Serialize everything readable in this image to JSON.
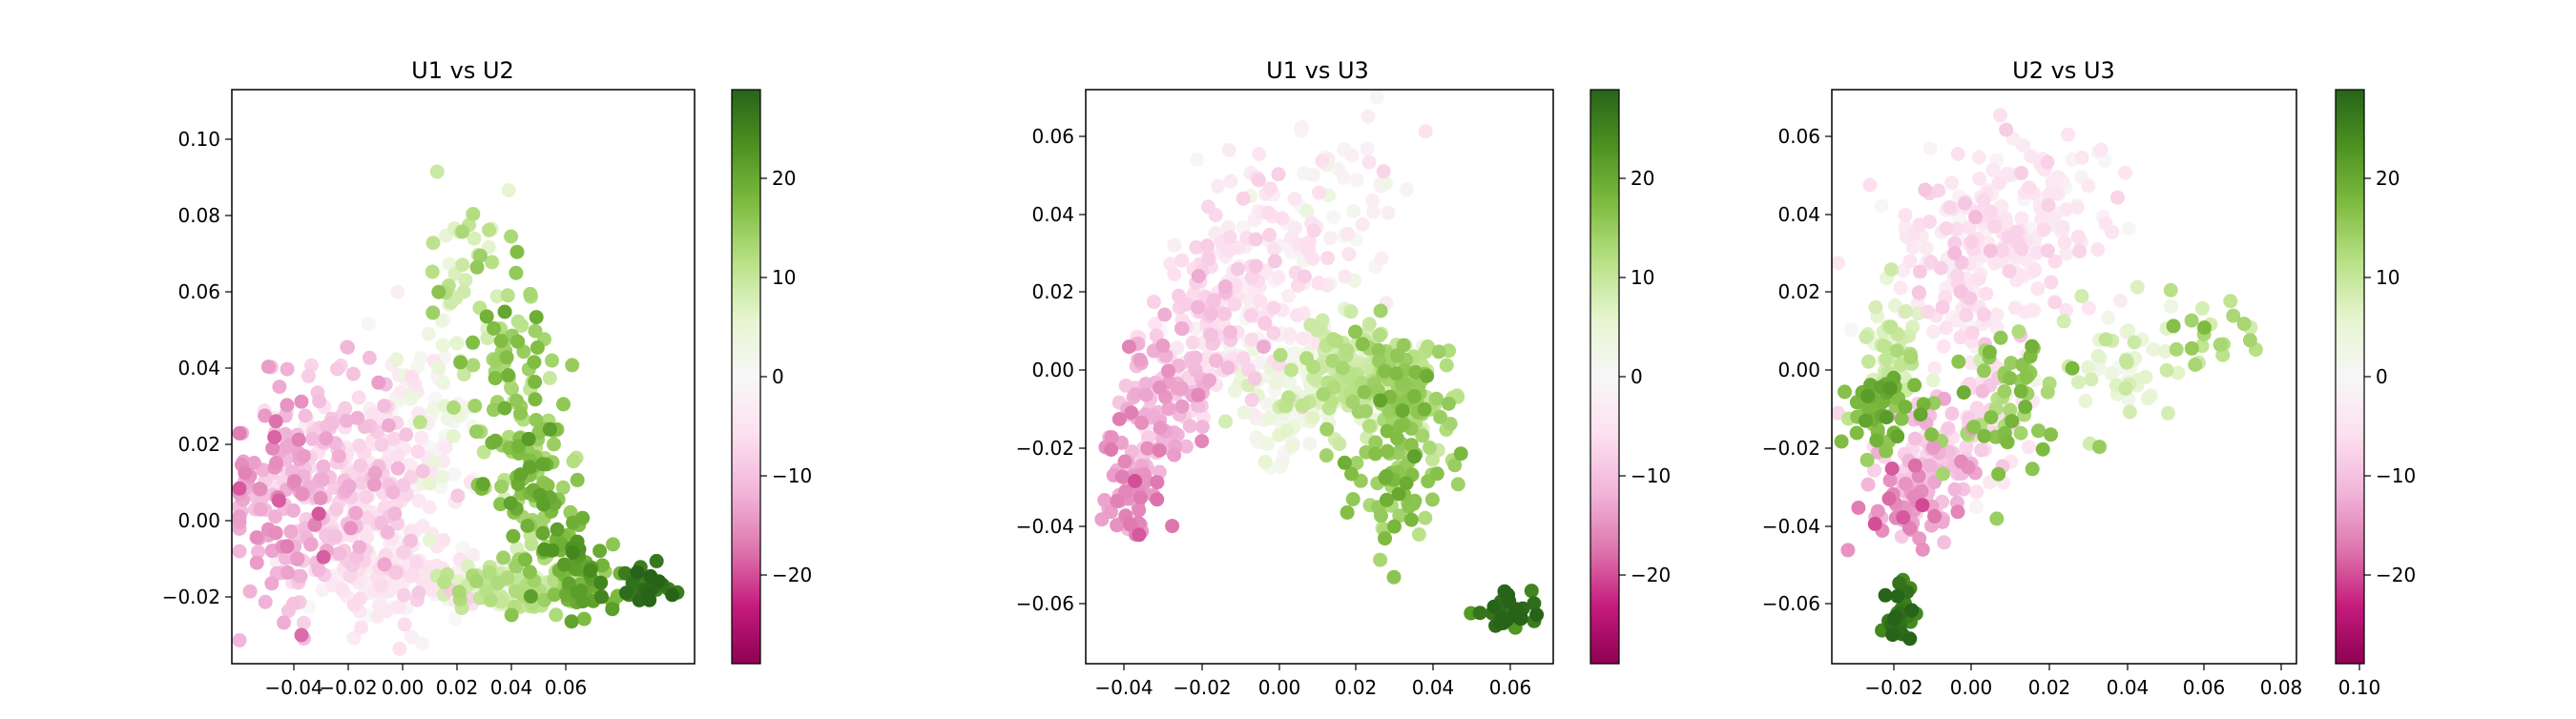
{
  "chart_data": [
    {
      "type": "scatter",
      "title": "U1 vs U2",
      "xlabel": "",
      "ylabel": "",
      "xlim": [
        -0.052,
        0.07
      ],
      "ylim": [
        -0.037,
        0.113
      ],
      "xticks": [
        "−0.04",
        "−0.02",
        "0.00",
        "0.02",
        "0.04",
        "0.06"
      ],
      "yticks": [
        "−0.02",
        "0.00",
        "0.02",
        "0.04",
        "0.06",
        "0.08",
        "0.10"
      ],
      "grid": false,
      "colorbar": {
        "cmap": "PiYG",
        "min": -29,
        "max": 29,
        "ticks": [
          "−20",
          "−10",
          "0",
          "10",
          "20"
        ]
      },
      "clusters": [
        {
          "cx": -0.038,
          "cy": 0.005,
          "sx": 0.008,
          "sy": 0.013,
          "n": 110,
          "c": -13
        },
        {
          "cx": -0.025,
          "cy": 0.01,
          "sx": 0.009,
          "sy": 0.014,
          "n": 140,
          "c": -9
        },
        {
          "cx": -0.012,
          "cy": 0.006,
          "sx": 0.009,
          "sy": 0.015,
          "n": 150,
          "c": -5
        },
        {
          "cx": -0.005,
          "cy": -0.015,
          "sx": 0.012,
          "sy": 0.005,
          "n": 110,
          "c": -3
        },
        {
          "cx": 0.002,
          "cy": 0.03,
          "sx": 0.006,
          "sy": 0.014,
          "n": 70,
          "c": 1
        },
        {
          "cx": 0.012,
          "cy": 0.065,
          "sx": 0.006,
          "sy": 0.017,
          "n": 35,
          "c": 10
        },
        {
          "cx": 0.022,
          "cy": 0.04,
          "sx": 0.007,
          "sy": 0.014,
          "n": 70,
          "c": 14
        },
        {
          "cx": 0.028,
          "cy": 0.01,
          "sx": 0.007,
          "sy": 0.012,
          "n": 80,
          "c": 16
        },
        {
          "cx": 0.023,
          "cy": -0.016,
          "sx": 0.01,
          "sy": 0.004,
          "n": 110,
          "c": 10
        },
        {
          "cx": 0.04,
          "cy": -0.014,
          "sx": 0.005,
          "sy": 0.007,
          "n": 60,
          "c": 20
        },
        {
          "cx": 0.058,
          "cy": -0.016,
          "sx": 0.004,
          "sy": 0.003,
          "n": 30,
          "c": 27
        }
      ]
    },
    {
      "type": "scatter",
      "title": "U1 vs U3",
      "xlabel": "",
      "ylabel": "",
      "xlim": [
        -0.052,
        0.07
      ],
      "ylim": [
        -0.075,
        0.072
      ],
      "xticks": [
        "−0.04",
        "−0.02",
        "0.00",
        "0.02",
        "0.04",
        "0.06"
      ],
      "yticks": [
        "−0.06",
        "−0.04",
        "−0.02",
        "0.00",
        "0.02",
        "0.04",
        "0.06"
      ],
      "grid": false,
      "colorbar": {
        "cmap": "PiYG",
        "min": -29,
        "max": 29,
        "ticks": [
          "−20",
          "−10",
          "0",
          "10",
          "20"
        ]
      },
      "clusters": [
        {
          "cx": -0.04,
          "cy": -0.032,
          "sx": 0.004,
          "sy": 0.007,
          "n": 60,
          "c": -14
        },
        {
          "cx": -0.032,
          "cy": -0.01,
          "sx": 0.006,
          "sy": 0.01,
          "n": 100,
          "c": -11
        },
        {
          "cx": -0.02,
          "cy": 0.01,
          "sx": 0.007,
          "sy": 0.01,
          "n": 110,
          "c": -7
        },
        {
          "cx": -0.008,
          "cy": 0.025,
          "sx": 0.01,
          "sy": 0.012,
          "n": 120,
          "c": -4
        },
        {
          "cx": 0.012,
          "cy": 0.042,
          "sx": 0.01,
          "sy": 0.01,
          "n": 60,
          "c": -2
        },
        {
          "cx": 0.0,
          "cy": -0.008,
          "sx": 0.007,
          "sy": 0.009,
          "n": 90,
          "c": 2
        },
        {
          "cx": 0.017,
          "cy": -0.002,
          "sx": 0.008,
          "sy": 0.007,
          "n": 170,
          "c": 9
        },
        {
          "cx": 0.032,
          "cy": -0.005,
          "sx": 0.006,
          "sy": 0.007,
          "n": 120,
          "c": 14
        },
        {
          "cx": 0.03,
          "cy": -0.028,
          "sx": 0.006,
          "sy": 0.008,
          "n": 60,
          "c": 15
        },
        {
          "cx": 0.058,
          "cy": -0.062,
          "sx": 0.004,
          "sy": 0.003,
          "n": 30,
          "c": 27
        }
      ]
    },
    {
      "type": "scatter",
      "title": "U2 vs U3",
      "xlabel": "",
      "ylabel": "",
      "xlim": [
        -0.037,
        0.113
      ],
      "ylim": [
        -0.075,
        0.072
      ],
      "xticks": [
        "−0.02",
        "0.00",
        "0.02",
        "0.04",
        "0.06",
        "0.08",
        "0.10"
      ],
      "yticks": [
        "−0.06",
        "−0.04",
        "−0.02",
        "0.00",
        "0.02",
        "0.04",
        "0.06"
      ],
      "grid": false,
      "colorbar": {
        "cmap": "PiYG",
        "min": -29,
        "max": 29,
        "ticks": [
          "−20",
          "−10",
          "0",
          "10",
          "20"
        ]
      },
      "clusters": [
        {
          "cx": 0.01,
          "cy": 0.03,
          "sx": 0.016,
          "sy": 0.012,
          "n": 200,
          "c": -5
        },
        {
          "cx": 0.035,
          "cy": 0.045,
          "sx": 0.012,
          "sy": 0.008,
          "n": 50,
          "c": -3
        },
        {
          "cx": -0.005,
          "cy": -0.025,
          "sx": 0.01,
          "sy": 0.008,
          "n": 80,
          "c": -10
        },
        {
          "cx": -0.012,
          "cy": -0.035,
          "sx": 0.008,
          "sy": 0.005,
          "n": 40,
          "c": -14
        },
        {
          "cx": 0.01,
          "cy": -0.01,
          "sx": 0.01,
          "sy": 0.01,
          "n": 60,
          "c": -6
        },
        {
          "cx": -0.018,
          "cy": 0.005,
          "sx": 0.005,
          "sy": 0.008,
          "n": 50,
          "c": 8
        },
        {
          "cx": -0.022,
          "cy": -0.01,
          "sx": 0.005,
          "sy": 0.006,
          "n": 60,
          "c": 18
        },
        {
          "cx": 0.02,
          "cy": -0.01,
          "sx": 0.012,
          "sy": 0.01,
          "n": 60,
          "c": 15
        },
        {
          "cx": 0.055,
          "cy": 0.002,
          "sx": 0.012,
          "sy": 0.008,
          "n": 50,
          "c": 6
        },
        {
          "cx": 0.085,
          "cy": 0.012,
          "sx": 0.008,
          "sy": 0.005,
          "n": 20,
          "c": 12
        },
        {
          "cx": -0.015,
          "cy": -0.062,
          "sx": 0.003,
          "sy": 0.004,
          "n": 28,
          "c": 27
        }
      ]
    }
  ]
}
